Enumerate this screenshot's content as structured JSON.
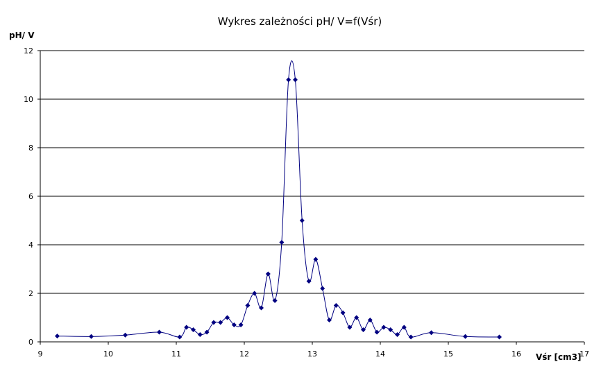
{
  "chart_data": {
    "type": "scatter",
    "title": "Wykres zależności  pH/   V=f(Vśr)",
    "xlabel": "Vśr [cm3]",
    "ylabel": "pH/  V",
    "xlim": [
      9,
      17
    ],
    "ylim": [
      0,
      12
    ],
    "x_ticks": [
      "9",
      "10",
      "11",
      "12",
      "13",
      "14",
      "15",
      "16",
      "17"
    ],
    "y_ticks": [
      "0",
      "2",
      "4",
      "6",
      "8",
      "10",
      "12"
    ],
    "grid": "horizontal",
    "legend": "none",
    "smoothed_line": true,
    "colors": {
      "series": "#000080",
      "grid": "#000000"
    },
    "series": [
      {
        "x": [
          9.25,
          9.75,
          10.25,
          10.75,
          11.05,
          11.15,
          11.25,
          11.35,
          11.45,
          11.55,
          11.65,
          11.75,
          11.85,
          11.95,
          12.05,
          12.15,
          12.25,
          12.35,
          12.45,
          12.55,
          12.65,
          12.75,
          12.85,
          12.95,
          13.05,
          13.15,
          13.25,
          13.35,
          13.45,
          13.55,
          13.65,
          13.75,
          13.85,
          13.95,
          14.05,
          14.15,
          14.25,
          14.35,
          14.45,
          14.75,
          15.25,
          15.75
        ],
        "y": [
          0.24,
          0.22,
          0.28,
          0.4,
          0.2,
          0.6,
          0.5,
          0.3,
          0.4,
          0.8,
          0.8,
          1.0,
          0.7,
          0.7,
          1.5,
          2.0,
          1.4,
          2.8,
          1.7,
          4.1,
          10.8,
          10.8,
          5.0,
          2.5,
          3.4,
          2.2,
          0.9,
          1.5,
          1.2,
          0.6,
          1.0,
          0.5,
          0.9,
          0.4,
          0.6,
          0.5,
          0.3,
          0.6,
          0.2,
          0.38,
          0.22,
          0.2
        ]
      }
    ]
  }
}
